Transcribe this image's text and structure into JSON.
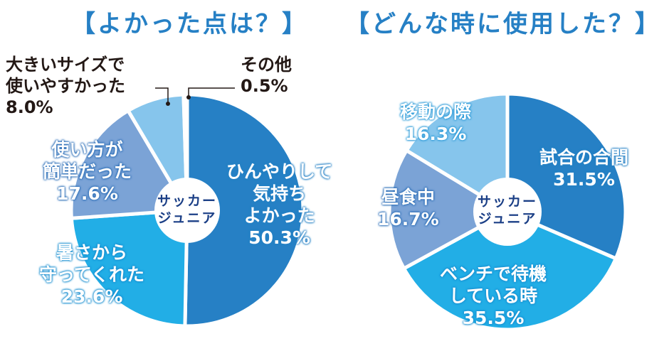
{
  "chart_data": [
    {
      "type": "pie",
      "title": "【よかった点は？】",
      "center_label": [
        "サッカー",
        "ジュニア"
      ],
      "slices": [
        {
          "label": "ひんやりして気持ちよかった",
          "value": 50.3,
          "display": "50.3%",
          "color": "#2680c5"
        },
        {
          "label": "暑さから守ってくれた",
          "value": 23.6,
          "display": "23.6%",
          "color": "#22aee6"
        },
        {
          "label": "使い方が簡単だった",
          "value": 17.6,
          "display": "17.6%",
          "color": "#7ba3d6"
        },
        {
          "label": "大きいサイズで使いやすかった",
          "value": 8.0,
          "display": "8.0%",
          "color": "#86c5ec"
        },
        {
          "label": "その他",
          "value": 0.5,
          "display": "0.5%",
          "color": "#b3b3b3"
        }
      ]
    },
    {
      "type": "pie",
      "title": "【どんな時に使用した？】",
      "center_label": [
        "サッカー",
        "ジュニア"
      ],
      "slices": [
        {
          "label": "試合の合間",
          "value": 31.5,
          "display": "31.5%",
          "color": "#2680c5"
        },
        {
          "label": "ベンチで待機している時",
          "value": 35.5,
          "display": "35.5%",
          "color": "#22aee6"
        },
        {
          "label": "昼食中",
          "value": 16.7,
          "display": "16.7%",
          "color": "#7ba3d6"
        },
        {
          "label": "移動の際",
          "value": 16.3,
          "display": "16.3%",
          "color": "#86c5ec"
        }
      ]
    }
  ],
  "labels": {
    "l0": "ひんやりして\n気持ち\nよかった",
    "l1": "暑さから\n守ってくれた",
    "l2": "使い方が\n簡単だった",
    "l3": "大きいサイズで\n使いやすかった",
    "l4": "その他",
    "r0": "試合の合間",
    "r1": "ベンチで待機\nしている時",
    "r2": "昼食中",
    "r3": "移動の際",
    "center": "サッカー\nジュニア"
  }
}
